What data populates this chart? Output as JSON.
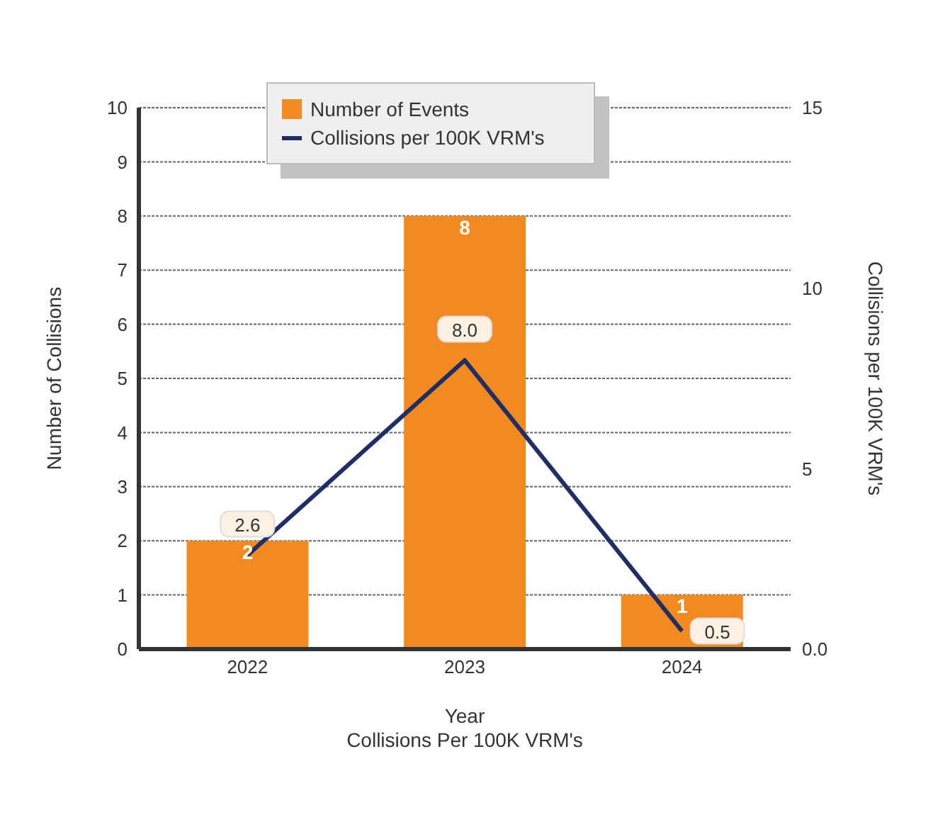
{
  "chart_data": {
    "type": "bar",
    "xlabel": "Year",
    "ylabel": "Number of Collisions",
    "y2label": "Collisions per 100K VRM's",
    "annotations": [
      "Collisions Per 100K VRM's"
    ],
    "categories": [
      "2022",
      "2023",
      "2024"
    ],
    "series": [
      {
        "name": "Number of Events",
        "color": "#f08a21",
        "values": [
          2,
          8,
          1
        ]
      },
      {
        "name": "Collisions per 100K VRM's",
        "type": "line",
        "axis": "y2",
        "color": "#1f2f66",
        "values": [
          2.6,
          8.0,
          0.5
        ],
        "value_labels": [
          "2.6",
          "8.0",
          "0.5"
        ]
      }
    ],
    "ylim": [
      0,
      10
    ],
    "yticks": [
      0,
      1,
      2,
      3,
      4,
      5,
      6,
      7,
      8,
      9,
      10
    ],
    "y2lim": [
      0,
      15
    ],
    "y2ticks": [
      {
        "value": 0,
        "label": "0.0"
      },
      5,
      10,
      15
    ],
    "grid": "y",
    "legend": "top",
    "data_labels": true,
    "marker": "none"
  }
}
